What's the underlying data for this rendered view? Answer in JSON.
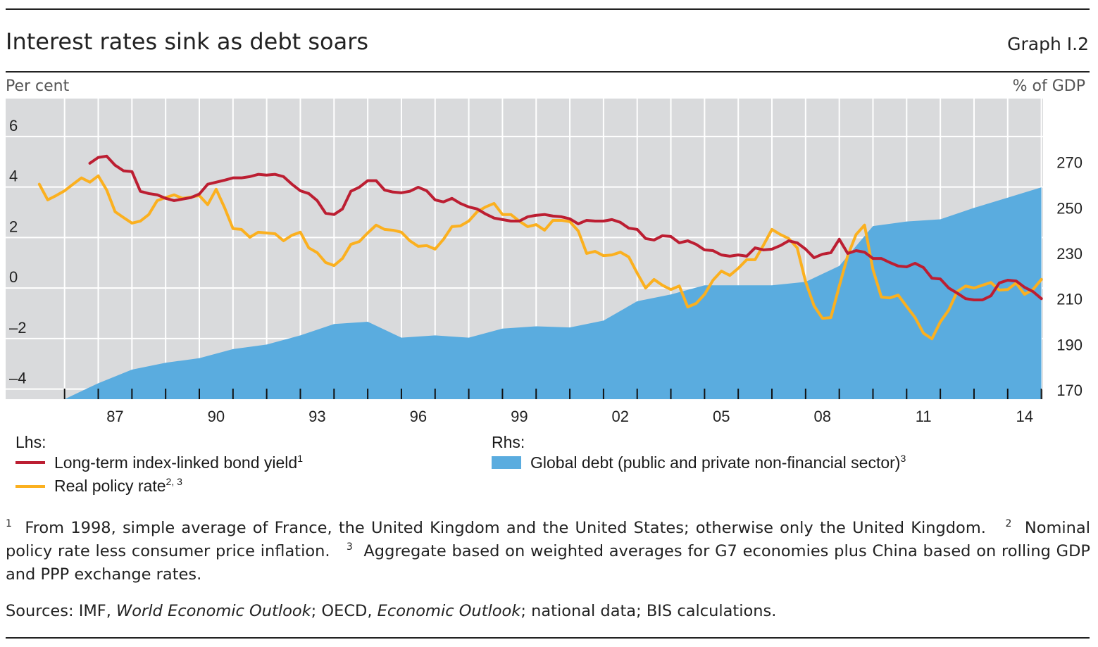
{
  "header": {
    "title": "Interest rates sink as debt soars",
    "graph_number": "Graph I.2"
  },
  "chart_data": {
    "type": "line+area",
    "left_axis": {
      "label": "Per cent",
      "ylim": [
        -4.4,
        7.5
      ],
      "ticks": [
        6,
        4,
        2,
        0,
        -2,
        -4
      ],
      "tick_labels": [
        "6",
        "4",
        "2",
        "0",
        "–2",
        "–4"
      ]
    },
    "right_axis": {
      "label": "% of GDP",
      "ylim": [
        166,
        298
      ],
      "ticks": [
        270,
        250,
        230,
        210,
        190,
        170
      ],
      "tick_labels": [
        "270",
        "250",
        "230",
        "210",
        "190",
        "170"
      ]
    },
    "x_axis": {
      "xlim": [
        1984.25,
        2015.05
      ],
      "tick_years": [
        1986,
        1987,
        1988,
        1989,
        1990,
        1991,
        1992,
        1993,
        1994,
        1995,
        1996,
        1997,
        1998,
        1999,
        2000,
        2001,
        2002,
        2003,
        2004,
        2005,
        2006,
        2007,
        2008,
        2009,
        2010,
        2011,
        2012,
        2013,
        2014,
        2015
      ],
      "labels": [
        {
          "year": 1987,
          "text": "87"
        },
        {
          "year": 1990,
          "text": "90"
        },
        {
          "year": 1993,
          "text": "93"
        },
        {
          "year": 1996,
          "text": "96"
        },
        {
          "year": 1999,
          "text": "99"
        },
        {
          "year": 2002,
          "text": "02"
        },
        {
          "year": 2005,
          "text": "05"
        },
        {
          "year": 2008,
          "text": "08"
        },
        {
          "year": 2011,
          "text": "11"
        },
        {
          "year": 2014,
          "text": "14"
        }
      ]
    },
    "grid": true,
    "background": "#d9dadc",
    "series": [
      {
        "name": "Global debt (public and private non-financial sector)",
        "axis": "right",
        "type": "area",
        "color": "#5aacdf",
        "x": [
          1986,
          1987,
          1988,
          1989,
          1990,
          1991,
          1992,
          1993,
          1994,
          1995,
          1996,
          1997,
          1998,
          1999,
          2000,
          2001,
          2002,
          2003,
          2004,
          2005,
          2006,
          2007,
          2008,
          2009,
          2010,
          2011,
          2012,
          2013,
          2014,
          2015
        ],
        "values": [
          166,
          173,
          179,
          182,
          184,
          188,
          190,
          194,
          199,
          200,
          193,
          194,
          193,
          197,
          198,
          197.5,
          200.5,
          209,
          212,
          216,
          216,
          216,
          217.5,
          224.5,
          242,
          244,
          245,
          250,
          254.5,
          259
        ]
      },
      {
        "name": "Real policy rate",
        "axis": "left",
        "type": "line",
        "color": "#fbb01f",
        "frequency": "quarterly",
        "x_start": 1985.25,
        "x_step": 0.25,
        "values": [
          4.11,
          3.49,
          3.66,
          3.85,
          4.11,
          4.36,
          4.19,
          4.44,
          3.88,
          3.02,
          2.79,
          2.57,
          2.65,
          2.91,
          3.46,
          3.58,
          3.69,
          3.55,
          3.6,
          3.66,
          3.3,
          3.91,
          3.18,
          2.35,
          2.32,
          2.01,
          2.21,
          2.18,
          2.15,
          1.87,
          2.09,
          2.21,
          1.59,
          1.4,
          1.01,
          0.89,
          1.17,
          1.73,
          1.84,
          2.18,
          2.49,
          2.32,
          2.29,
          2.21,
          1.87,
          1.65,
          1.68,
          1.54,
          1.93,
          2.43,
          2.46,
          2.65,
          3.02,
          3.21,
          3.35,
          2.91,
          2.91,
          2.65,
          2.43,
          2.51,
          2.29,
          2.68,
          2.68,
          2.63,
          2.26,
          1.37,
          1.45,
          1.28,
          1.31,
          1.42,
          1.23,
          0.59,
          0.0,
          0.34,
          0.11,
          -0.06,
          0.08,
          -0.75,
          -0.61,
          -0.25,
          0.31,
          0.67,
          0.5,
          0.78,
          1.12,
          1.12,
          1.7,
          2.32,
          2.12,
          1.96,
          1.59,
          0.25,
          -0.7,
          -1.2,
          -1.17,
          0.08,
          1.28,
          2.12,
          2.49,
          0.73,
          -0.36,
          -0.39,
          -0.28,
          -0.73,
          -1.17,
          -1.79,
          -2.01,
          -1.34,
          -0.87,
          -0.14,
          0.08,
          0.0,
          0.11,
          0.22,
          -0.08,
          -0.06,
          0.2,
          -0.25,
          -0.06,
          0.34
        ]
      },
      {
        "name": "Long-term index-linked bond yield",
        "axis": "left",
        "type": "line",
        "color": "#bc1e32",
        "frequency": "quarterly",
        "x_start": 1986.75,
        "x_step": 0.25,
        "values": [
          4.94,
          5.17,
          5.22,
          4.86,
          4.64,
          4.61,
          3.83,
          3.74,
          3.69,
          3.55,
          3.46,
          3.52,
          3.58,
          3.72,
          4.11,
          4.19,
          4.27,
          4.36,
          4.36,
          4.41,
          4.5,
          4.47,
          4.5,
          4.41,
          4.11,
          3.85,
          3.74,
          3.46,
          2.96,
          2.91,
          3.13,
          3.83,
          3.99,
          4.25,
          4.25,
          3.88,
          3.8,
          3.77,
          3.83,
          3.99,
          3.85,
          3.49,
          3.41,
          3.55,
          3.35,
          3.21,
          3.13,
          2.93,
          2.77,
          2.71,
          2.65,
          2.65,
          2.82,
          2.88,
          2.91,
          2.85,
          2.82,
          2.74,
          2.54,
          2.68,
          2.65,
          2.65,
          2.71,
          2.6,
          2.37,
          2.32,
          1.96,
          1.9,
          2.07,
          2.04,
          1.79,
          1.87,
          1.73,
          1.51,
          1.48,
          1.31,
          1.26,
          1.31,
          1.26,
          1.59,
          1.51,
          1.54,
          1.68,
          1.87,
          1.79,
          1.54,
          1.2,
          1.34,
          1.4,
          1.93,
          1.37,
          1.48,
          1.42,
          1.17,
          1.17,
          1.01,
          0.87,
          0.84,
          0.98,
          0.81,
          0.39,
          0.36,
          0.0,
          -0.2,
          -0.42,
          -0.47,
          -0.47,
          -0.31,
          0.2,
          0.31,
          0.28,
          0.03,
          -0.14,
          -0.42
        ]
      }
    ]
  },
  "legend": {
    "lhs_label": "Lhs:",
    "rhs_label": "Rhs:",
    "items": [
      {
        "text": "Long-term index-linked bond yield",
        "sup": "1",
        "color": "#bc1e32"
      },
      {
        "text": "Real policy rate",
        "sup": "2, 3",
        "color": "#fbb01f"
      },
      {
        "text": "Global debt (public and private non-financial sector)",
        "sup": "3",
        "color": "#5aacdf"
      }
    ]
  },
  "footnotes": {
    "n1": "1",
    "t1": "From 1998, simple average of France, the United Kingdom and the United States; otherwise only the United Kingdom.",
    "n2": "2",
    "t2": "Nominal policy rate less consumer price inflation.",
    "n3": "3",
    "t3": "Aggregate based on weighted averages for G7 economies plus China based on rolling GDP and PPP exchange rates."
  },
  "sources": {
    "prefix": "Sources: IMF, ",
    "s1": "World Economic Outlook",
    "mid": "; OECD, ",
    "s2": "Economic Outlook",
    "suffix": "; national data; BIS calculations."
  }
}
